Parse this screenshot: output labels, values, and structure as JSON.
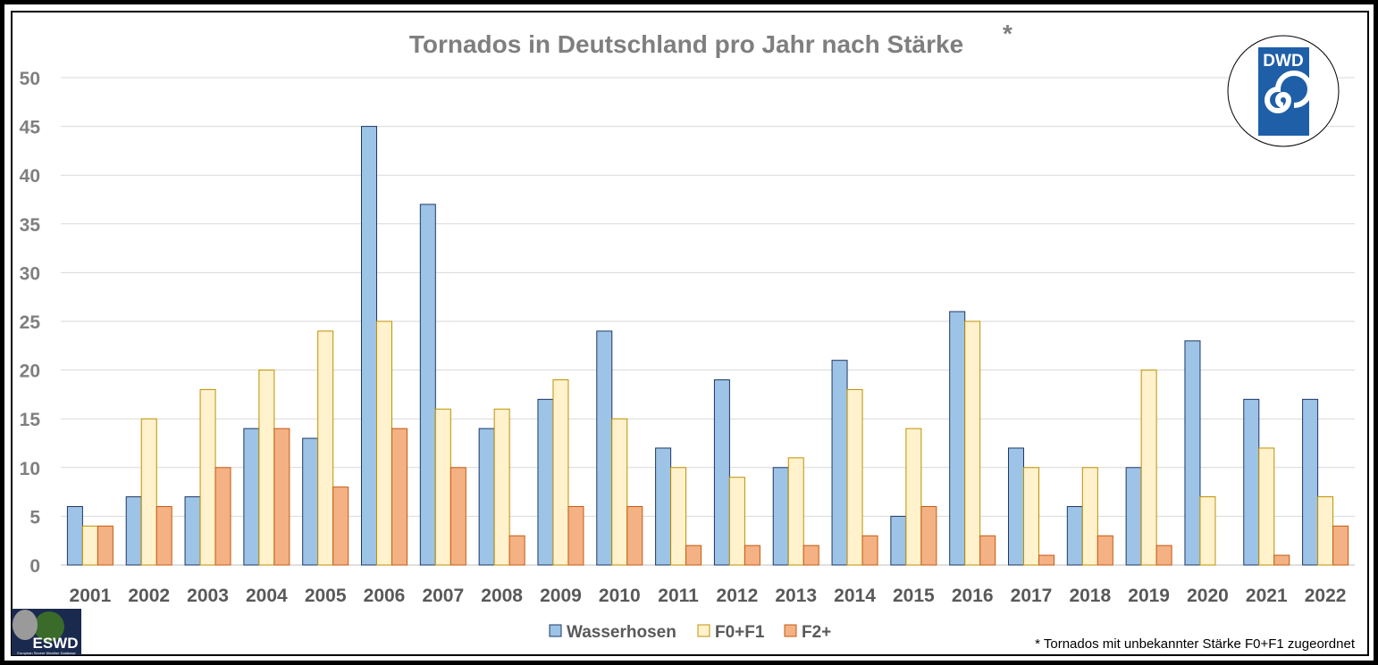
{
  "chart_data": {
    "type": "bar",
    "title": "Tornados in Deutschland pro Jahr nach Stärke",
    "title_mark": "*",
    "categories": [
      "2001",
      "2002",
      "2003",
      "2004",
      "2005",
      "2006",
      "2007",
      "2008",
      "2009",
      "2010",
      "2011",
      "2012",
      "2013",
      "2014",
      "2015",
      "2016",
      "2017",
      "2018",
      "2019",
      "2020",
      "2021",
      "2022"
    ],
    "series": [
      {
        "name": "Wasserhosen",
        "color": "#9dc3e6",
        "stroke": "#1f3864",
        "values": [
          6,
          7,
          7,
          14,
          13,
          45,
          37,
          14,
          17,
          24,
          12,
          19,
          10,
          21,
          5,
          26,
          12,
          6,
          10,
          23,
          17,
          17
        ]
      },
      {
        "name": "F0+F1",
        "color": "#fff2cc",
        "stroke": "#bf9000",
        "values": [
          4,
          15,
          18,
          20,
          24,
          25,
          16,
          16,
          19,
          15,
          10,
          9,
          11,
          18,
          14,
          25,
          10,
          10,
          20,
          7,
          12,
          7
        ]
      },
      {
        "name": "F2+",
        "color": "#f4b183",
        "stroke": "#c55a11",
        "values": [
          4,
          6,
          10,
          14,
          8,
          14,
          10,
          3,
          6,
          6,
          2,
          2,
          2,
          3,
          6,
          3,
          1,
          3,
          2,
          0,
          1,
          4
        ]
      }
    ],
    "ylim": [
      0,
      50
    ],
    "yticks": [
      "0",
      "5",
      "10",
      "15",
      "20",
      "25",
      "30",
      "35",
      "40",
      "45",
      "50"
    ],
    "grid": true,
    "legend_position": "bottom"
  },
  "footnote": "* Tornados mit unbekannter Stärke F0+F1 zugeordnet",
  "logos": {
    "dwd": {
      "text": "DWD",
      "icon": "dwd-swirl-icon",
      "color": "#1f5fa8"
    },
    "eswd": {
      "text": "ESWD",
      "subtitle": "European Severe Weather Database",
      "icon": "eswd-globe-icon"
    }
  }
}
